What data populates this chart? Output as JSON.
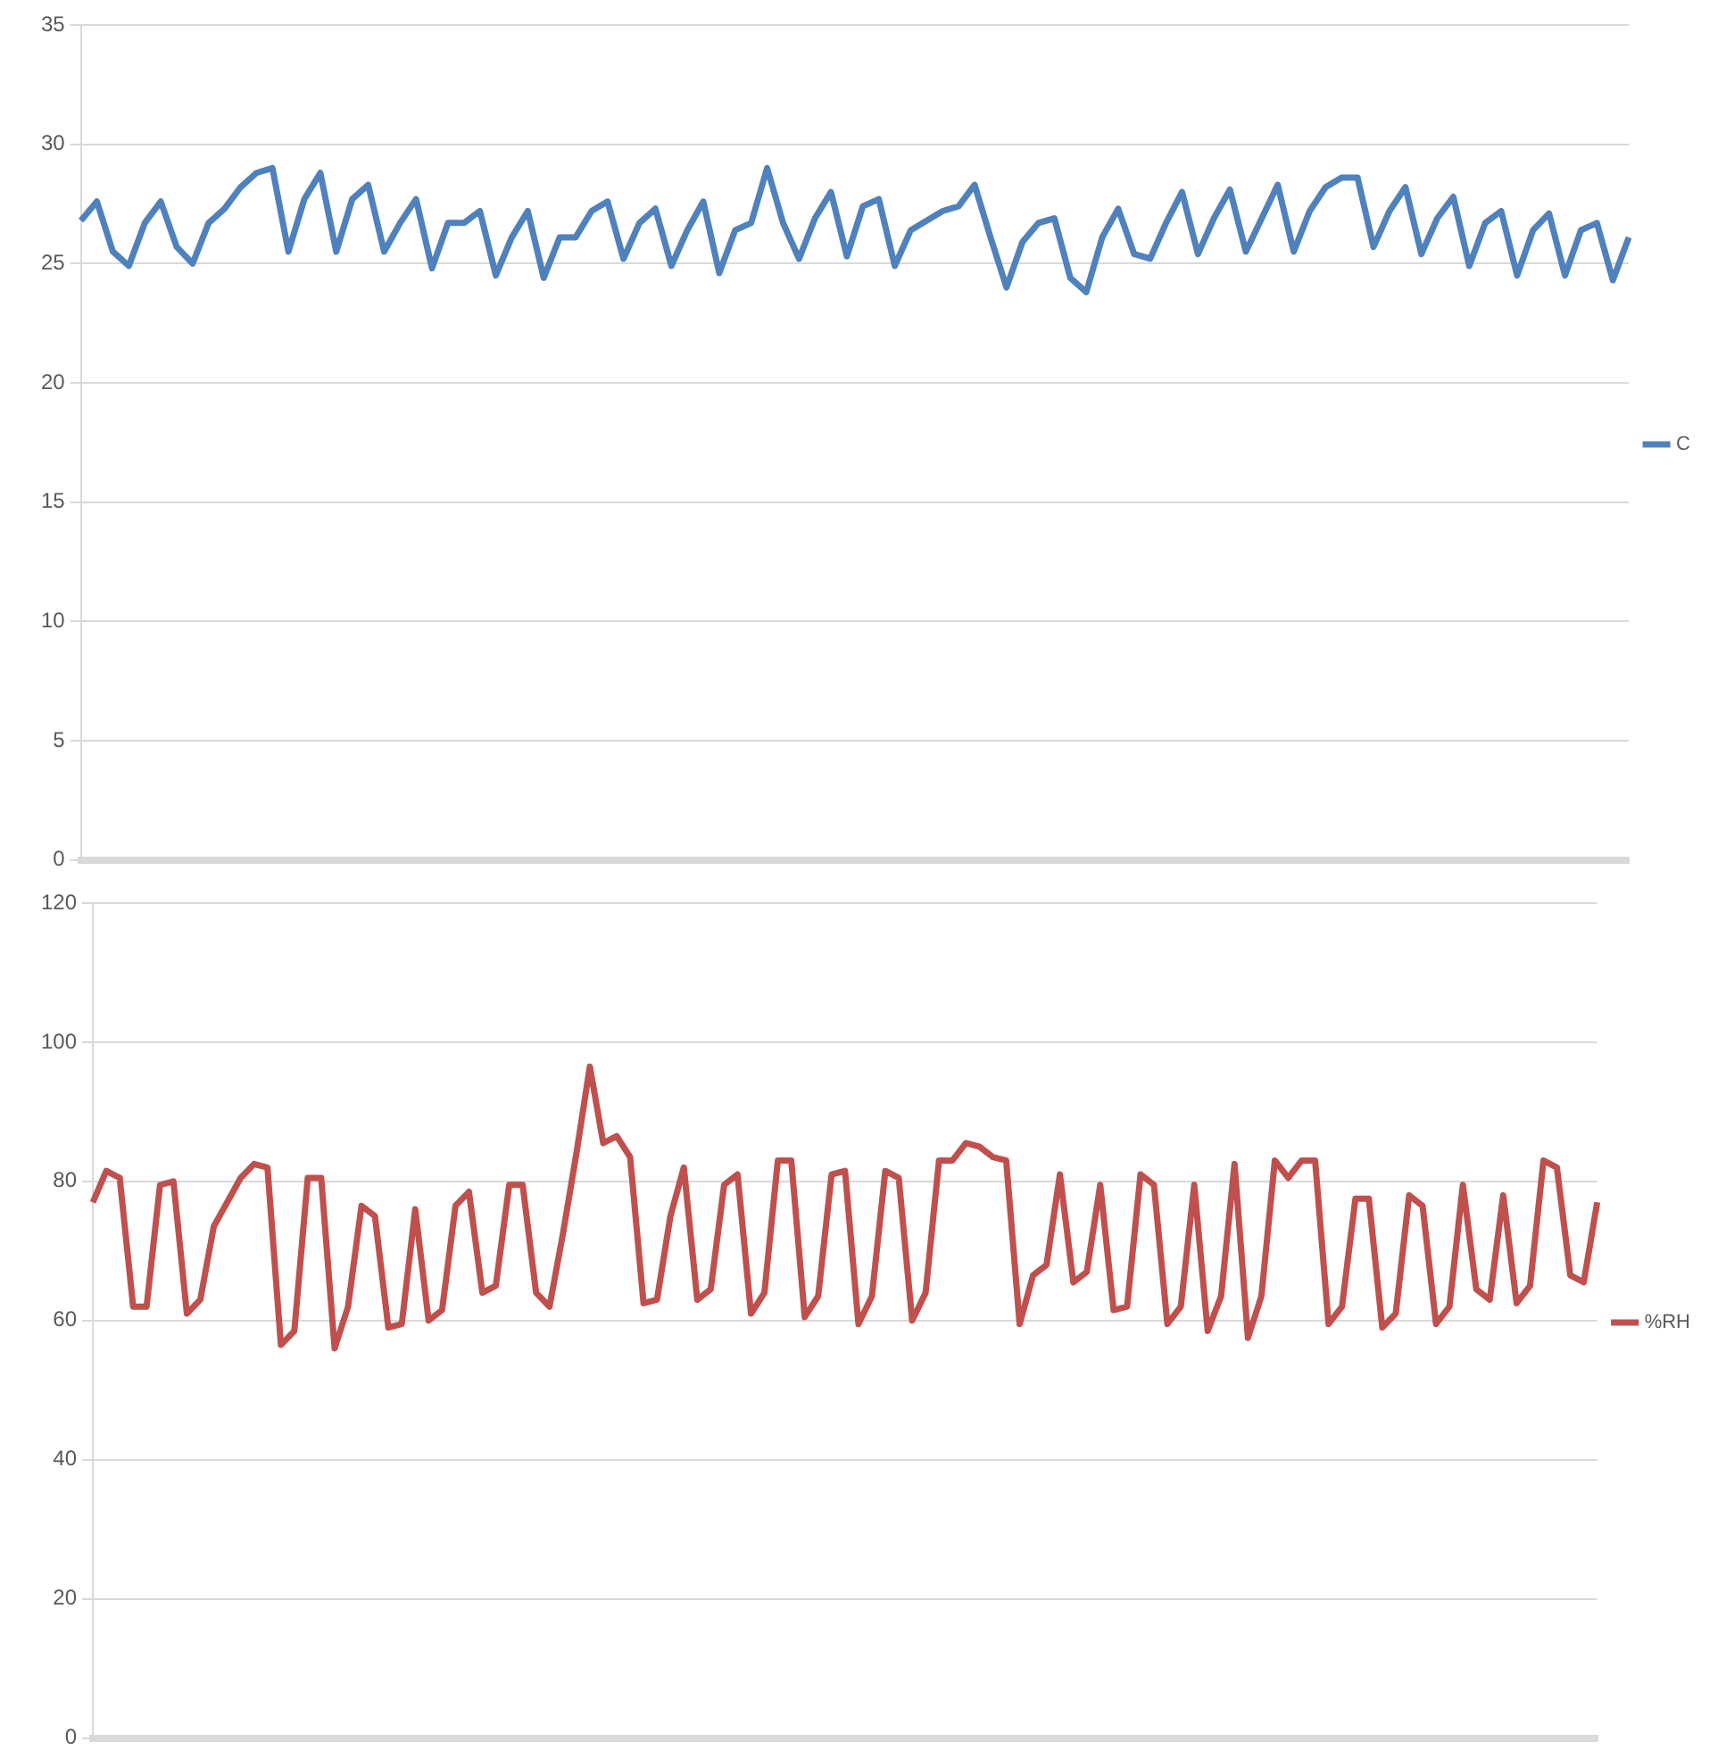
{
  "chart_data": [
    {
      "type": "line",
      "categories": [
        null,
        null,
        null,
        null,
        null,
        null,
        null,
        null,
        null,
        null,
        null,
        null,
        null,
        null,
        null,
        null,
        null,
        null,
        null,
        null,
        null,
        null,
        null,
        null,
        null,
        null,
        null,
        null,
        null,
        null,
        null,
        null,
        null,
        null,
        null,
        null,
        null,
        null,
        null,
        null,
        null,
        null,
        null,
        null,
        null,
        null,
        null,
        null,
        null,
        null,
        null,
        null,
        null,
        null,
        null,
        null,
        null,
        null,
        null,
        null,
        null,
        null,
        null,
        null,
        null,
        null,
        null,
        null,
        null,
        null,
        null,
        null,
        null,
        null,
        null,
        null,
        null,
        null,
        null,
        null,
        null,
        null,
        null,
        null,
        null,
        null,
        null,
        null,
        null,
        null,
        null,
        null,
        null,
        null,
        null,
        null,
        null,
        null
      ],
      "series": [
        {
          "name": "C",
          "color": "#4f81bd",
          "values": [
            26.8,
            27.6,
            25.5,
            24.9,
            26.7,
            27.6,
            25.7,
            25.0,
            26.7,
            27.3,
            28.2,
            28.8,
            29.0,
            25.5,
            27.7,
            28.8,
            25.5,
            27.7,
            28.3,
            25.5,
            26.7,
            27.7,
            24.8,
            26.7,
            26.7,
            27.2,
            24.5,
            26.1,
            27.2,
            24.4,
            26.1,
            26.1,
            27.2,
            27.6,
            25.2,
            26.7,
            27.3,
            24.9,
            26.4,
            27.6,
            24.6,
            26.4,
            26.7,
            29.0,
            26.7,
            25.2,
            26.9,
            28.0,
            25.3,
            27.4,
            27.7,
            24.9,
            26.4,
            26.8,
            27.2,
            27.4,
            28.3,
            26.1,
            24.0,
            25.9,
            26.7,
            26.9,
            24.4,
            23.8,
            26.1,
            27.3,
            25.4,
            25.2,
            26.7,
            28.0,
            25.4,
            26.9,
            28.1,
            25.5,
            26.9,
            28.3,
            25.5,
            27.2,
            28.2,
            28.6,
            28.6,
            25.7,
            27.2,
            28.2,
            25.4,
            26.9,
            27.8,
            24.9,
            26.7,
            27.2,
            24.5,
            26.4,
            27.1,
            24.5,
            26.4,
            26.7,
            24.3,
            26.1
          ]
        }
      ],
      "ylim": [
        0,
        35
      ],
      "yticks": [
        0,
        5,
        10,
        15,
        20,
        25,
        30,
        35
      ],
      "grid": "y",
      "legend": "right",
      "marker": "none",
      "tick_labels": "y"
    },
    {
      "type": "line",
      "categories": [
        null,
        null,
        null,
        null,
        null,
        null,
        null,
        null,
        null,
        null,
        null,
        null,
        null,
        null,
        null,
        null,
        null,
        null,
        null,
        null,
        null,
        null,
        null,
        null,
        null,
        null,
        null,
        null,
        null,
        null,
        null,
        null,
        null,
        null,
        null,
        null,
        null,
        null,
        null,
        null,
        null,
        null,
        null,
        null,
        null,
        null,
        null,
        null,
        null,
        null,
        null,
        null,
        null,
        null,
        null,
        null,
        null,
        null,
        null,
        null,
        null,
        null,
        null,
        null,
        null,
        null,
        null,
        null,
        null,
        null,
        null,
        null,
        null,
        null,
        null,
        null,
        null,
        null,
        null,
        null,
        null,
        null,
        null,
        null,
        null,
        null,
        null,
        null,
        null,
        null,
        null,
        null,
        null,
        null,
        null,
        null,
        null,
        null,
        null,
        null,
        null,
        null,
        null,
        null,
        null,
        null,
        null,
        null,
        null,
        null,
        null,
        null,
        null
      ],
      "series": [
        {
          "name": "%RH",
          "color": "#c0504d",
          "values": [
            77,
            81.5,
            80.5,
            62,
            62,
            79.5,
            80,
            61,
            63,
            73.5,
            77,
            80.5,
            82.5,
            82,
            56.5,
            58.5,
            80.5,
            80.5,
            56,
            62,
            76.5,
            75,
            59,
            59.5,
            76,
            60,
            61.5,
            76.5,
            78.5,
            64,
            65,
            79.5,
            79.5,
            64,
            62,
            72.5,
            84,
            96.5,
            85.5,
            86.5,
            83.5,
            62.5,
            63,
            75,
            82,
            63,
            64.5,
            79.5,
            81,
            61,
            64,
            83,
            83,
            60.5,
            63.5,
            81,
            81.5,
            59.5,
            63.5,
            81.5,
            80.5,
            60,
            64,
            83,
            83,
            85.5,
            85,
            83.5,
            83,
            59.5,
            66.5,
            68,
            81,
            65.5,
            67,
            79.5,
            61.5,
            62,
            81,
            79.5,
            59.5,
            62,
            79.5,
            58.5,
            63.5,
            82.5,
            57.5,
            63.5,
            83,
            80.5,
            83,
            83,
            59.5,
            62,
            77.5,
            77.5,
            59,
            61,
            78,
            76.5,
            59.5,
            62,
            79.5,
            64.5,
            63,
            78,
            62.5,
            65,
            83,
            82,
            66.5,
            65.5,
            77
          ]
        }
      ],
      "ylim": [
        0,
        120
      ],
      "yticks": [
        0,
        20,
        40,
        60,
        80,
        100,
        120
      ],
      "grid": "y",
      "legend": "right",
      "marker": "none",
      "tick_labels": "y"
    }
  ]
}
